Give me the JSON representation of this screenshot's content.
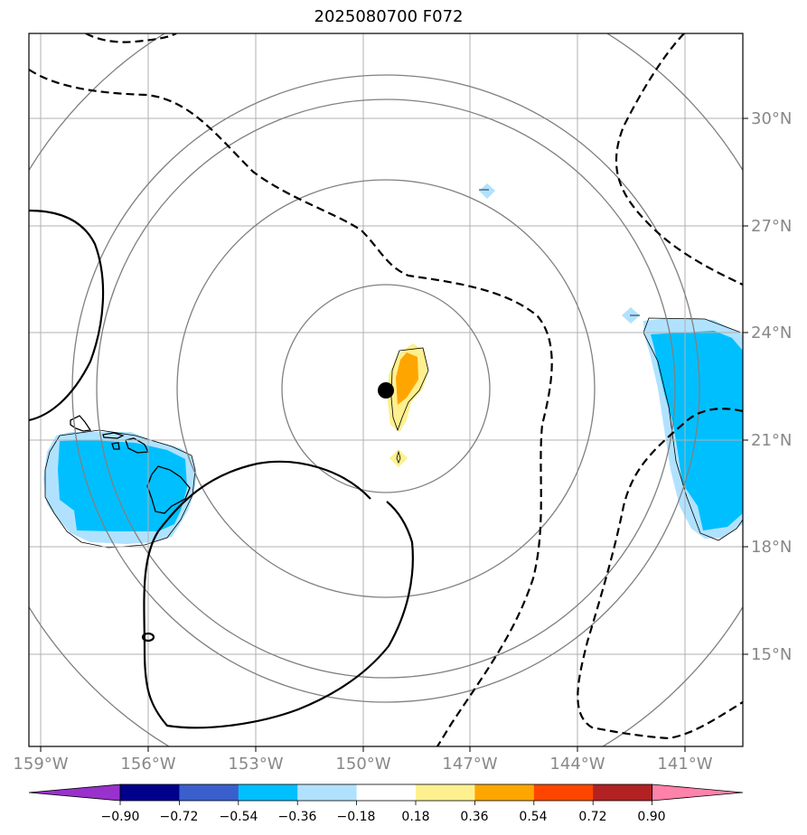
{
  "title": "2025080700 F072",
  "axes": {
    "lon_labels": [
      "159°W",
      "156°W",
      "153°W",
      "150°W",
      "147°W",
      "144°W",
      "141°W"
    ],
    "lat_labels": [
      "30°N",
      "27°N",
      "24°N",
      "21°N",
      "18°N",
      "15°N"
    ],
    "lon_values": [
      -159,
      -156,
      -153,
      -150,
      -147,
      -144,
      -141
    ],
    "lat_values": [
      30,
      27,
      24,
      21,
      18,
      15
    ],
    "lon_range": [
      -159.35,
      -139.4
    ],
    "lat_range": [
      12.5,
      32.4
    ],
    "grid": true,
    "label_color": "#888888"
  },
  "storm_center": {
    "lon": -149.9,
    "lat": 22.3
  },
  "range_rings": [
    3,
    6,
    9,
    12
  ],
  "colorbar": {
    "ticks": [
      "−0.90",
      "−0.72",
      "−0.54",
      "−0.36",
      "−0.18",
      "0.18",
      "0.36",
      "0.54",
      "0.72",
      "0.90"
    ],
    "colors": [
      "#9932cc",
      "#00008b",
      "#3a5fcd",
      "#00bfff",
      "#b0e2ff",
      "#ffffff",
      "#fff08f",
      "#ffa500",
      "#ff4500",
      "#b22222",
      "#ff82ab"
    ],
    "extend": "both"
  },
  "fill_colors": {
    "neg_strong": "#00bfff",
    "neg_weak": "#b0e2ff",
    "pos_weak": "#fff08f",
    "pos_strong": "#ffa500"
  }
}
